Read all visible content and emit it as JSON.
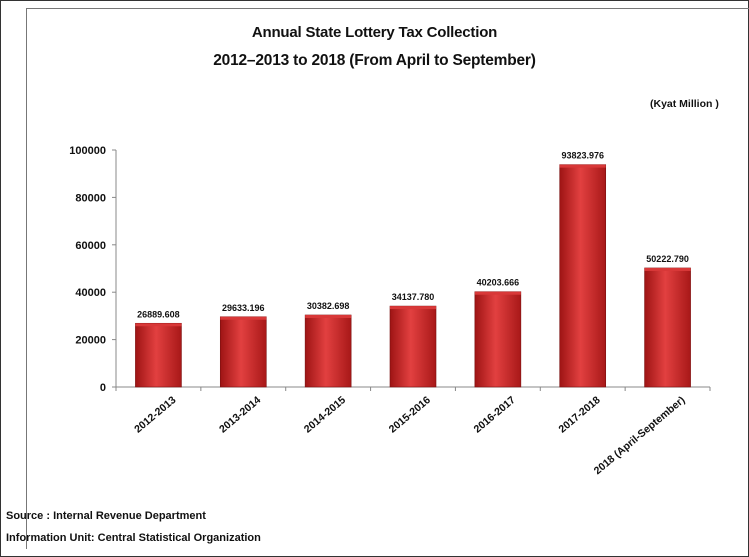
{
  "chart_data": {
    "type": "bar",
    "title": "Annual State Lottery Tax Collection",
    "subtitle": "2012–2013  to 2018 (From April to September)",
    "unit_label": "(Kyat Million )",
    "categories": [
      "2012-2013",
      "2013-2014",
      "2014-2015",
      "2015-2016",
      "2016-2017",
      "2017-2018",
      "2018 (April-September)"
    ],
    "values": [
      26889.608,
      29633.196,
      30382.698,
      34137.78,
      40203.666,
      93823.976,
      50222.79
    ],
    "value_labels": [
      "26889.608",
      "29633.196",
      "30382.698",
      "34137.780",
      "40203.666",
      "93823.976",
      "50222.790"
    ],
    "y_ticks": [
      "0",
      "20000",
      "40000",
      "60000",
      "80000",
      "100000"
    ],
    "ylim": [
      0,
      100000
    ],
    "grid": false,
    "legend": "none",
    "bar_color": "#cc2222"
  },
  "footer": {
    "source": "Source :  Internal Revenue Department",
    "info": "Information Unit:  Central Statistical Organization"
  }
}
